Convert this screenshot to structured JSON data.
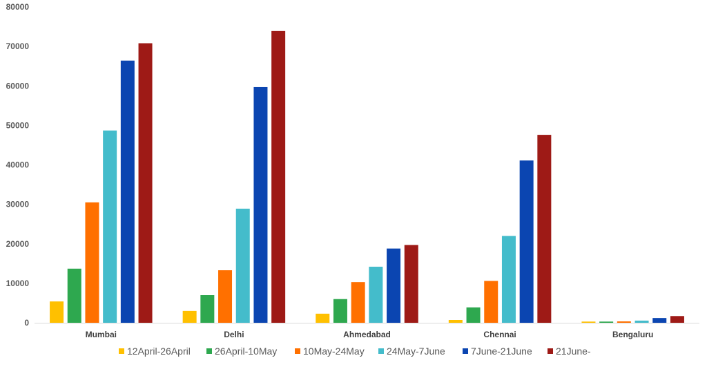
{
  "chart_data": {
    "type": "bar",
    "title": "",
    "xlabel": "",
    "ylabel": "",
    "ylim": [
      0,
      80000
    ],
    "yticks": [
      0,
      10000,
      20000,
      30000,
      40000,
      50000,
      60000,
      70000,
      80000
    ],
    "ytick_labels": [
      "0",
      "10000",
      "20000",
      "30000",
      "40000",
      "50000",
      "60000",
      "70000",
      "80000"
    ],
    "grid": false,
    "legend_position": "bottom",
    "categories": [
      "Mumbai",
      "Delhi",
      "Ahmedabad",
      "Chennai",
      "Bengaluru"
    ],
    "series": [
      {
        "name": "12April-26April",
        "color": "#FFC000",
        "values": [
          5400,
          3000,
          2300,
          700,
          300
        ]
      },
      {
        "name": "26April-10May",
        "color": "#2EA84F",
        "values": [
          13700,
          7000,
          6000,
          3900,
          300
        ]
      },
      {
        "name": "10May-24May",
        "color": "#FF7000",
        "values": [
          30500,
          13300,
          10300,
          10600,
          350
        ]
      },
      {
        "name": "24May-7June",
        "color": "#44BCCB",
        "values": [
          48700,
          28900,
          14200,
          22000,
          550
        ]
      },
      {
        "name": "7June-21June",
        "color": "#0B45B1",
        "values": [
          66400,
          59700,
          18800,
          41100,
          1200
        ]
      },
      {
        "name": "21June-",
        "color": "#9E1A16",
        "values": [
          70800,
          73900,
          19700,
          47600,
          1700
        ]
      }
    ]
  }
}
